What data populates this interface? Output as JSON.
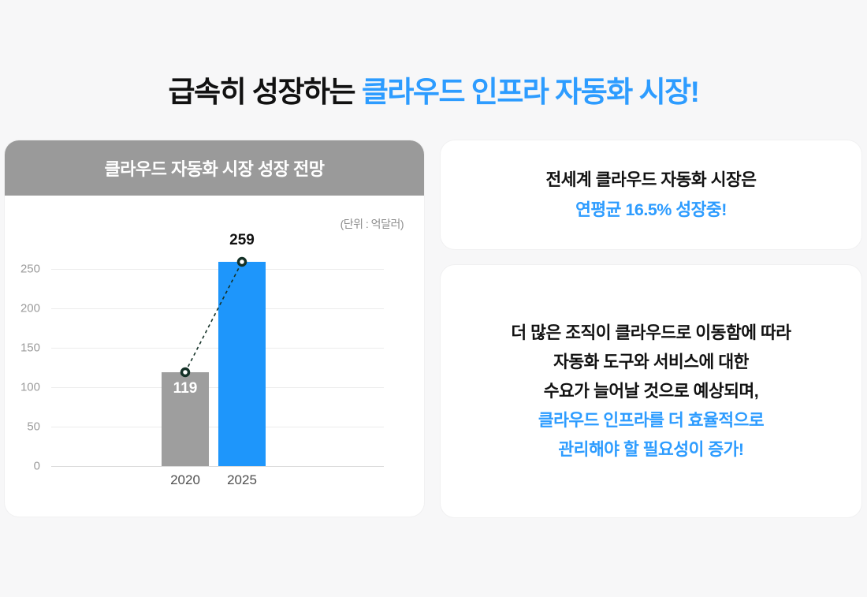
{
  "title": {
    "prefix": "급속히 성장하는 ",
    "highlight": "클라우드 인프라 자동화 시장!"
  },
  "chart_panel": {
    "header": "클라우드 자동화 시장 성장 전망",
    "unit_label": "(단위 : 억달러)"
  },
  "chart_data": {
    "type": "bar",
    "title": "클라우드 자동화 시장 성장 전망",
    "unit_label": "(단위 : 억달러)",
    "categories": [
      "2020",
      "2025"
    ],
    "values": [
      119,
      259
    ],
    "bar_colors": [
      "#9e9e9e",
      "#1e96fb"
    ],
    "value_label_placement": [
      "inside",
      "above"
    ],
    "yticks": [
      0,
      50,
      100,
      150,
      200,
      250
    ],
    "ylim": [
      0,
      275
    ],
    "xlabel": "",
    "ylabel": "",
    "grid": true,
    "legend": "none",
    "trend_line": {
      "style": "dashed",
      "color": "#143127",
      "marker": "open-circle"
    }
  },
  "cards": [
    {
      "lines": [
        {
          "text": "전세계 클라우드 자동화 시장은",
          "color": "text_black"
        },
        {
          "text": "연평균 16.5% 성장중!",
          "color": "accent_blue"
        }
      ]
    },
    {
      "lines": [
        {
          "text": "더 많은 조직이 클라우드로 이동함에 따라",
          "color": "text_black"
        },
        {
          "text": "자동화 도구와 서비스에 대한",
          "color": "text_black"
        },
        {
          "text": "수요가 늘어날 것으로 예상되며,",
          "color": "text_black"
        },
        {
          "text": "클라우드 인프라를 더 효율적으로",
          "color": "accent_blue"
        },
        {
          "text": "관리해야 할 필요성이 증가!",
          "color": "accent_blue"
        }
      ]
    }
  ],
  "colors": {
    "accent_blue": "#2d9cff",
    "bar_blue": "#1e96fb",
    "bar_gray": "#9e9e9e",
    "header_gray": "#9a9a9a",
    "text_black": "#111111",
    "background": "#f7f7f8",
    "marker_dark": "#143127"
  }
}
